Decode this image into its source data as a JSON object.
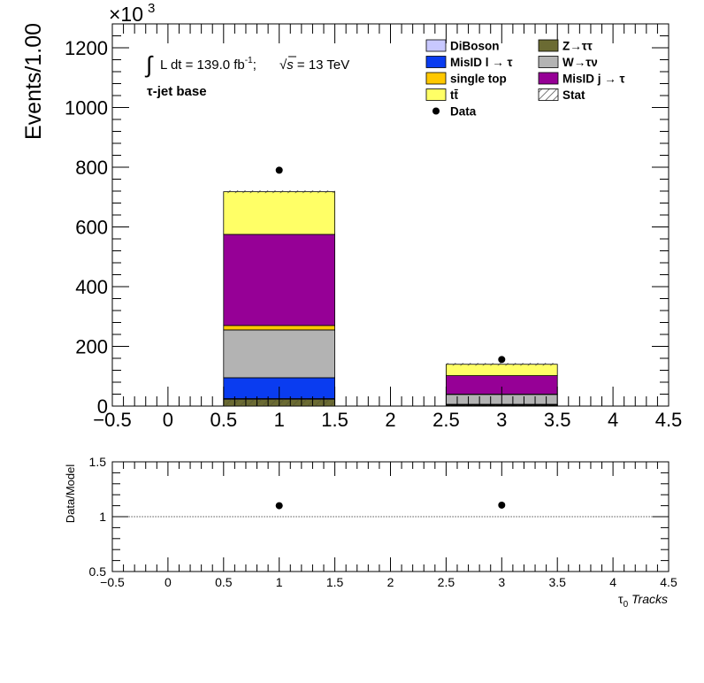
{
  "chart_data": [
    {
      "type": "bar",
      "stacked": true,
      "ylabel": "Events/1.00",
      "y_multiplier_label": "×10",
      "y_multiplier_exp": "3",
      "xlim": [
        -0.5,
        4.5
      ],
      "ylim": [
        0,
        1280
      ],
      "x_ticks": [
        "−0.5",
        "0",
        "0.5",
        "1",
        "1.5",
        "2",
        "2.5",
        "3",
        "3.5",
        "4",
        "4.5"
      ],
      "x_tick_values": [
        -0.5,
        0,
        0.5,
        1,
        1.5,
        2,
        2.5,
        3,
        3.5,
        4,
        4.5
      ],
      "y_ticks": [
        "0",
        "200",
        "400",
        "600",
        "800",
        "1000",
        "1200"
      ],
      "y_tick_values": [
        0,
        200,
        400,
        600,
        800,
        1000,
        1200
      ],
      "annotation": {
        "integral": "∫",
        "lumi": "L dt = 139.0 fb",
        "lumi_exp": "-1",
        "sep": ";",
        "sqrt": "√",
        "s": "s",
        "energy": " = 13 TeV",
        "region": "τ-jet base"
      },
      "bins": [
        {
          "lo": 0.5,
          "hi": 1.5
        },
        {
          "lo": 2.5,
          "hi": 3.5
        }
      ],
      "series": [
        {
          "name": "Z→ττ",
          "color": "#6b6b33",
          "values": [
            22,
            3
          ]
        },
        {
          "name": "DiBoson",
          "color": "#c8c8ff",
          "values": [
            3,
            1
          ]
        },
        {
          "name": "MisID l → τ",
          "color": "#0a3cf0",
          "values": [
            70,
            2
          ]
        },
        {
          "name": "W→τν",
          "color": "#b3b3b3",
          "values": [
            160,
            33
          ]
        },
        {
          "name": "single top",
          "color": "#ffc800",
          "values": [
            15,
            1
          ]
        },
        {
          "name": "MisID j → τ",
          "color": "#960096",
          "values": [
            305,
            62
          ]
        },
        {
          "name": "tt̄",
          "color": "#ffff66",
          "values": [
            143,
            38
          ]
        }
      ],
      "data_points": {
        "name": "Data",
        "x": [
          1,
          3
        ],
        "y": [
          790,
          156
        ]
      },
      "legend": [
        {
          "label": "DiBoson",
          "color": "#c8c8ff",
          "kind": "box"
        },
        {
          "label": "Z→ττ",
          "color": "#6b6b33",
          "kind": "box"
        },
        {
          "label": "MisID l  →  τ",
          "color": "#0a3cf0",
          "kind": "box"
        },
        {
          "label": "W→τν",
          "color": "#b3b3b3",
          "kind": "box"
        },
        {
          "label": "single top",
          "color": "#ffc800",
          "kind": "box"
        },
        {
          "label": "MisID j  →  τ",
          "color": "#960096",
          "kind": "box"
        },
        {
          "label": "tt̄",
          "color": "#ffff66",
          "kind": "box"
        },
        {
          "label": "Stat",
          "color": "#000000",
          "kind": "hatch"
        },
        {
          "label": "Data",
          "color": "#000000",
          "kind": "marker"
        }
      ],
      "legend_position": "top-right"
    },
    {
      "type": "scatter",
      "ylabel": "Data/Model",
      "xlabel_main": "τ",
      "xlabel_sub": "0",
      "xlabel_rest": " Tracks",
      "xlim": [
        -0.5,
        4.5
      ],
      "ylim": [
        0.5,
        1.5
      ],
      "x_ticks": [
        "−0.5",
        "0",
        "0.5",
        "1",
        "1.5",
        "2",
        "2.5",
        "3",
        "3.5",
        "4",
        "4.5"
      ],
      "x_tick_values": [
        -0.5,
        0,
        0.5,
        1,
        1.5,
        2,
        2.5,
        3,
        3.5,
        4,
        4.5
      ],
      "y_ticks": [
        "0.5",
        "1",
        "1.5"
      ],
      "y_tick_values": [
        0.5,
        1,
        1.5
      ],
      "reference_line": 1.0,
      "points": {
        "x": [
          1,
          3
        ],
        "y": [
          1.1,
          1.105
        ]
      }
    }
  ]
}
